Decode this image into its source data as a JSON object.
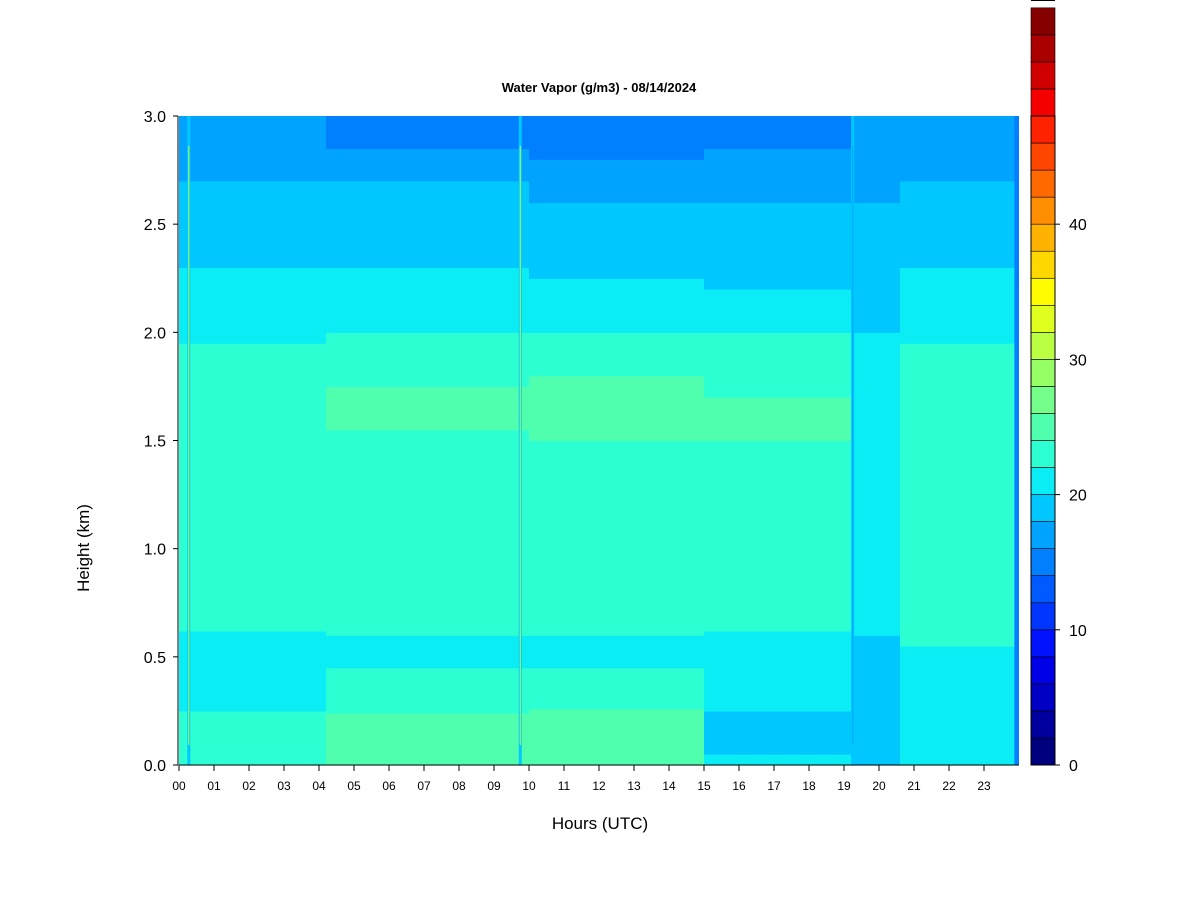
{
  "chart_data": {
    "type": "heatmap",
    "title": "Water Vapor (g/m3) - 08/14/2024",
    "xlabel": "Hours (UTC)",
    "ylabel": "Height (km)",
    "xlim": [
      0,
      24
    ],
    "ylim": [
      0,
      3.0
    ],
    "x_ticks": [
      "00",
      "01",
      "02",
      "03",
      "04",
      "05",
      "06",
      "07",
      "08",
      "09",
      "10",
      "11",
      "12",
      "13",
      "14",
      "15",
      "16",
      "17",
      "18",
      "19",
      "20",
      "21",
      "22",
      "23"
    ],
    "y_ticks": [
      "0.0",
      "0.5",
      "1.0",
      "1.5",
      "2.0",
      "2.5",
      "3.0"
    ],
    "colorbar": {
      "range": [
        0,
        48
      ],
      "step": 2,
      "ticks": [
        "0",
        "10",
        "20",
        "30",
        "40"
      ],
      "colors": [
        "#00007f",
        "#00009f",
        "#0000c4",
        "#0000e8",
        "#0012ff",
        "#0036ff",
        "#005aff",
        "#0080ff",
        "#00a4ff",
        "#00c8ff",
        "#0aedf5",
        "#2cffd2",
        "#50ffae",
        "#73ff8a",
        "#97ff66",
        "#bbff42",
        "#dfff1e",
        "#fffc00",
        "#ffd800",
        "#ffb300",
        "#ff8f00",
        "#ff6a00",
        "#ff4600",
        "#ff2200",
        "#f40000",
        "#d00000",
        "#ab0000",
        "#870000"
      ]
    },
    "bands": [
      {
        "from_hour": 0.0,
        "to_hour": 4.2,
        "levels": [
          [
            0.25,
            11
          ],
          [
            0.62,
            10
          ],
          [
            1.95,
            11
          ],
          [
            2.3,
            10
          ],
          [
            2.7,
            9
          ],
          [
            3.0,
            8
          ]
        ]
      },
      {
        "from_hour": 4.2,
        "to_hour": 10.0,
        "levels": [
          [
            0.24,
            12
          ],
          [
            0.45,
            11
          ],
          [
            0.6,
            10
          ],
          [
            1.55,
            11
          ],
          [
            1.75,
            12
          ],
          [
            2.0,
            11
          ],
          [
            2.3,
            10
          ],
          [
            2.7,
            9
          ],
          [
            2.85,
            8
          ],
          [
            3.0,
            7
          ]
        ]
      },
      {
        "from_hour": 10.0,
        "to_hour": 15.0,
        "levels": [
          [
            0.26,
            12
          ],
          [
            0.45,
            11
          ],
          [
            0.6,
            10
          ],
          [
            1.5,
            11
          ],
          [
            1.8,
            12
          ],
          [
            2.0,
            11
          ],
          [
            2.25,
            10
          ],
          [
            2.6,
            9
          ],
          [
            2.8,
            8
          ],
          [
            3.0,
            7
          ]
        ]
      },
      {
        "from_hour": 15.0,
        "to_hour": 19.2,
        "levels": [
          [
            0.05,
            10
          ],
          [
            0.25,
            9
          ],
          [
            0.35,
            10
          ],
          [
            0.62,
            10
          ],
          [
            1.5,
            11
          ],
          [
            1.7,
            12
          ],
          [
            2.0,
            11
          ],
          [
            2.2,
            10
          ],
          [
            2.6,
            9
          ],
          [
            2.85,
            8
          ],
          [
            3.0,
            7
          ]
        ]
      },
      {
        "from_hour": 19.2,
        "to_hour": 20.6,
        "levels": [
          [
            0.6,
            9
          ],
          [
            2.0,
            10
          ],
          [
            2.6,
            9
          ],
          [
            3.0,
            8
          ]
        ]
      },
      {
        "from_hour": 20.6,
        "to_hour": 23.85,
        "levels": [
          [
            0.55,
            10
          ],
          [
            1.95,
            11
          ],
          [
            2.3,
            10
          ],
          [
            2.7,
            9
          ],
          [
            3.0,
            8
          ]
        ]
      }
    ],
    "spikes": [
      {
        "hour": 0.28,
        "value": 30
      },
      {
        "hour": 9.75,
        "value": 30
      },
      {
        "hour": 19.25,
        "value": 16
      }
    ]
  }
}
